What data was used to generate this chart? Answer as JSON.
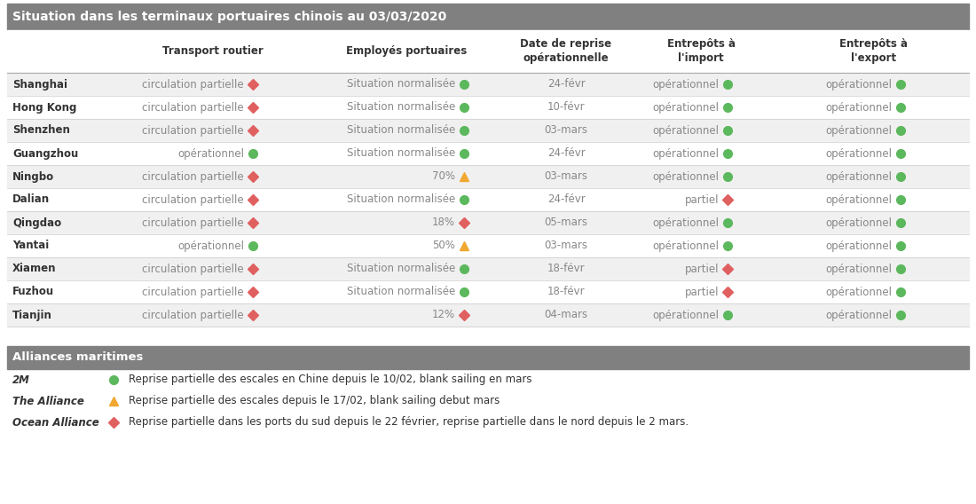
{
  "title": "Situation dans les terminaux portuaires chinois au 03/03/2020",
  "header_bg": "#808080",
  "row_colors": [
    "#f0f0f0",
    "#ffffff"
  ],
  "rows": [
    {
      "city": "Shanghai",
      "transport": "circulation partielle",
      "transport_icon": "red_diamond",
      "employes": "Situation normalisée",
      "employes_icon": "green_circle",
      "date": "24-févr",
      "import_text": "opérationnel",
      "import_icon": "green_circle",
      "export_text": "opérationnel",
      "export_icon": "green_circle"
    },
    {
      "city": "Hong Kong",
      "transport": "circulation partielle",
      "transport_icon": "red_diamond",
      "employes": "Situation normalisée",
      "employes_icon": "green_circle",
      "date": "10-févr",
      "import_text": "opérationnel",
      "import_icon": "green_circle",
      "export_text": "opérationnel",
      "export_icon": "green_circle"
    },
    {
      "city": "Shenzhen",
      "transport": "circulation partielle",
      "transport_icon": "red_diamond",
      "employes": "Situation normalisée",
      "employes_icon": "green_circle",
      "date": "03-mars",
      "import_text": "opérationnel",
      "import_icon": "green_circle",
      "export_text": "opérationnel",
      "export_icon": "green_circle"
    },
    {
      "city": "Guangzhou",
      "transport": "opérationnel",
      "transport_icon": "green_circle",
      "employes": "Situation normalisée",
      "employes_icon": "green_circle",
      "date": "24-févr",
      "import_text": "opérationnel",
      "import_icon": "green_circle",
      "export_text": "opérationnel",
      "export_icon": "green_circle"
    },
    {
      "city": "Ningbo",
      "transport": "circulation partielle",
      "transport_icon": "red_diamond",
      "employes": "70%",
      "employes_icon": "yellow_triangle",
      "date": "03-mars",
      "import_text": "opérationnel",
      "import_icon": "green_circle",
      "export_text": "opérationnel",
      "export_icon": "green_circle"
    },
    {
      "city": "Dalian",
      "transport": "circulation partielle",
      "transport_icon": "red_diamond",
      "employes": "Situation normalisée",
      "employes_icon": "green_circle",
      "date": "24-févr",
      "import_text": "partiel",
      "import_icon": "red_diamond",
      "export_text": "opérationnel",
      "export_icon": "green_circle"
    },
    {
      "city": "Qingdao",
      "transport": "circulation partielle",
      "transport_icon": "red_diamond",
      "employes": "18%",
      "employes_icon": "red_diamond",
      "date": "05-mars",
      "import_text": "opérationnel",
      "import_icon": "green_circle",
      "export_text": "opérationnel",
      "export_icon": "green_circle"
    },
    {
      "city": "Yantai",
      "transport": "opérationnel",
      "transport_icon": "green_circle",
      "employes": "50%",
      "employes_icon": "yellow_triangle",
      "date": "03-mars",
      "import_text": "opérationnel",
      "import_icon": "green_circle",
      "export_text": "opérationnel",
      "export_icon": "green_circle"
    },
    {
      "city": "Xiamen",
      "transport": "circulation partielle",
      "transport_icon": "red_diamond",
      "employes": "Situation normalisée",
      "employes_icon": "green_circle",
      "date": "18-févr",
      "import_text": "partiel",
      "import_icon": "red_diamond",
      "export_text": "opérationnel",
      "export_icon": "green_circle"
    },
    {
      "city": "Fuzhou",
      "transport": "circulation partielle",
      "transport_icon": "red_diamond",
      "employes": "Situation normalisée",
      "employes_icon": "green_circle",
      "date": "18-févr",
      "import_text": "partiel",
      "import_icon": "red_diamond",
      "export_text": "opérationnel",
      "export_icon": "green_circle"
    },
    {
      "city": "Tianjin",
      "transport": "circulation partielle",
      "transport_icon": "red_diamond",
      "employes": "12%",
      "employes_icon": "red_diamond",
      "date": "04-mars",
      "import_text": "opérationnel",
      "import_icon": "green_circle",
      "export_text": "opérationnel",
      "export_icon": "green_circle"
    }
  ],
  "alliances_title": "Alliances maritimes",
  "alliances": [
    {
      "name": "2M",
      "icon": "green_circle",
      "text": "Reprise partielle des escales en Chine depuis le 10/02, blank sailing en mars"
    },
    {
      "name": "The Alliance",
      "icon": "yellow_triangle",
      "text": "Reprise partielle des escales depuis le 17/02, blank sailing debut mars"
    },
    {
      "name": "Ocean Alliance",
      "icon": "red_diamond",
      "text": "Reprise partielle dans les ports du sud depuis le 22 février, reprise partielle dans le nord depuis le 2 mars."
    }
  ],
  "green_color": "#5cb85c",
  "red_color": "#e06060",
  "yellow_color": "#f0a830",
  "text_gray": "#888888",
  "text_dark": "#333333",
  "divider_color": "#cccccc"
}
